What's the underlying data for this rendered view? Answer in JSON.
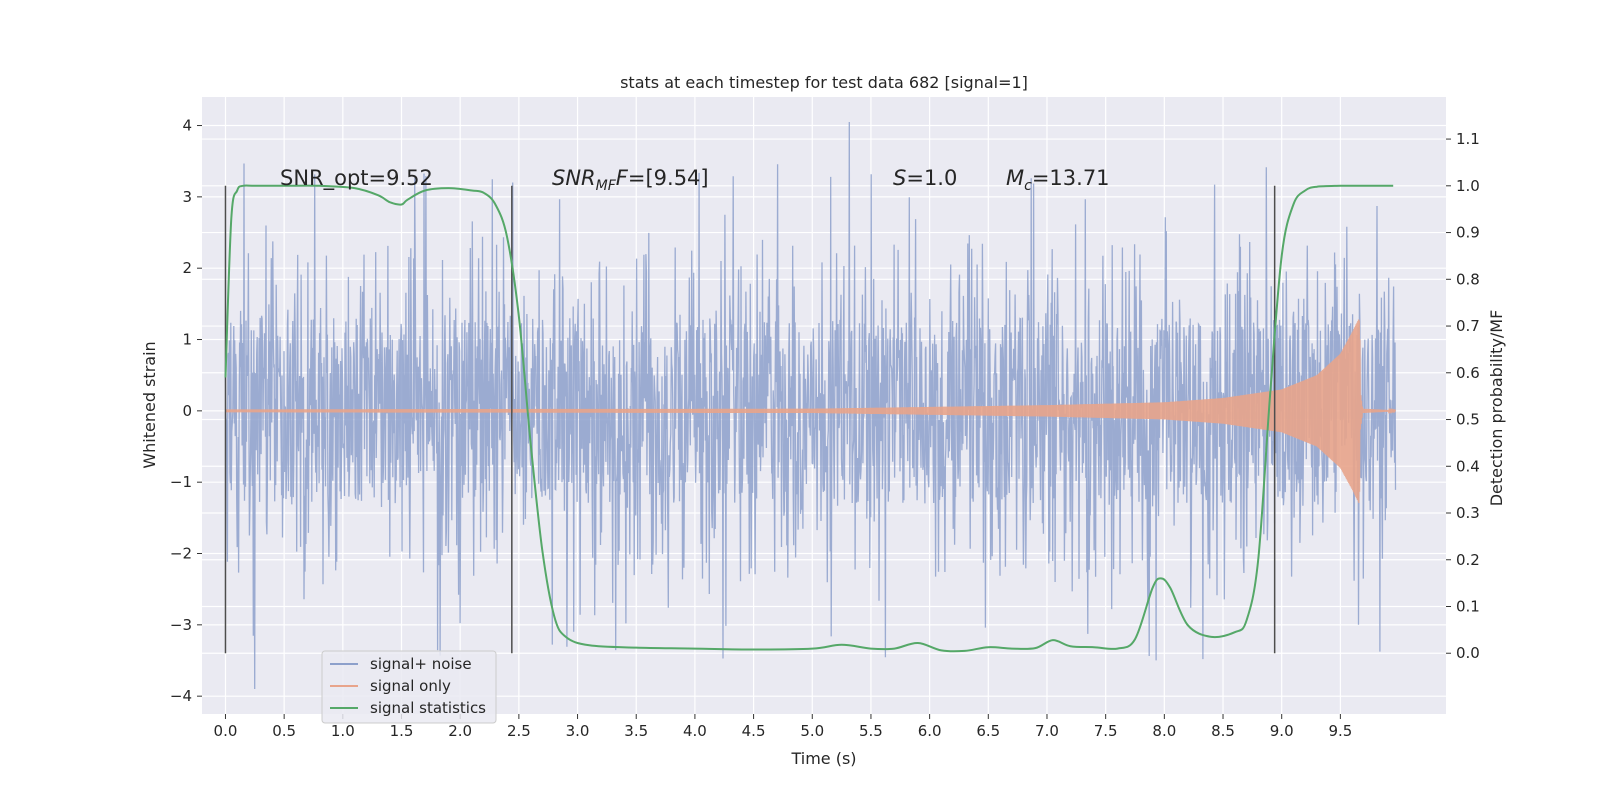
{
  "chart_data": {
    "type": "line",
    "title": "stats at each timestep for test data 682 [signal=1]",
    "xlabel": "Time (s)",
    "ylabel": "Whitened strain",
    "y2label": "Detection probability/MF",
    "xlim": [
      -0.2,
      10.4
    ],
    "ylim": [
      -4.25,
      4.4
    ],
    "y2lim": [
      -0.13,
      1.19
    ],
    "x_ticks": [
      "0.0",
      "0.5",
      "1.0",
      "1.5",
      "2.0",
      "2.5",
      "3.0",
      "3.5",
      "4.0",
      "4.5",
      "5.0",
      "5.5",
      "6.0",
      "6.5",
      "7.0",
      "7.5",
      "8.0",
      "8.5",
      "9.0",
      "9.5"
    ],
    "y_ticks": [
      "4",
      "3",
      "2",
      "1",
      "0",
      "−1",
      "−2",
      "−3",
      "−4"
    ],
    "y2_ticks": [
      "1.1",
      "1.0",
      "0.9",
      "0.8",
      "0.7",
      "0.6",
      "0.5",
      "0.4",
      "0.3",
      "0.2",
      "0.1",
      "0.0"
    ],
    "grid": true,
    "legend_position": "lower-left",
    "annotations": {
      "snr_opt": "SNR_opt=9.52",
      "snr_mf_prefix": "SNR",
      "snr_mf_sub": "MF",
      "snr_mf_value": "=[9.54]",
      "s_label": "S",
      "s_value": "=1.0",
      "mc_label": "M",
      "mc_sub": "c",
      "mc_value": "=13.71"
    },
    "vertical_markers_x": [
      0.0,
      2.44,
      8.94
    ],
    "series": [
      {
        "name": "signal+ noise",
        "color": "#8da0cb",
        "description_values": "whitened noise, |y| mostly < 1.3 with spikes up to about 4.05 near t=5.3 and down to about -3.9 near t=0.25",
        "x_range": [
          0.0,
          9.97
        ],
        "peak_max": 4.05,
        "peak_min": -3.9
      },
      {
        "name": "signal only",
        "color": "#e8a48b",
        "x_range": [
          0.0,
          9.97
        ],
        "envelope": [
          [
            0.0,
            0.02
          ],
          [
            5.0,
            0.03
          ],
          [
            7.0,
            0.08
          ],
          [
            8.0,
            0.12
          ],
          [
            8.5,
            0.18
          ],
          [
            9.0,
            0.3
          ],
          [
            9.3,
            0.5
          ],
          [
            9.5,
            0.8
          ],
          [
            9.6,
            1.1
          ],
          [
            9.66,
            1.3
          ],
          [
            9.69,
            0.1
          ],
          [
            9.97,
            0.02
          ]
        ],
        "merger_time": 9.67
      },
      {
        "name": "signal statistics",
        "color": "#55a868",
        "x": [
          0.0,
          0.05,
          0.1,
          0.15,
          0.25,
          0.5,
          0.8,
          1.1,
          1.3,
          1.4,
          1.5,
          1.55,
          1.7,
          1.9,
          2.1,
          2.2,
          2.3,
          2.4,
          2.5,
          2.6,
          2.7,
          2.8,
          2.9,
          3.1,
          3.5,
          4.0,
          4.5,
          5.0,
          5.25,
          5.5,
          5.7,
          5.9,
          6.1,
          6.3,
          6.5,
          6.7,
          6.9,
          7.05,
          7.2,
          7.4,
          7.6,
          7.75,
          7.9,
          7.97,
          8.05,
          8.2,
          8.4,
          8.6,
          8.7,
          8.8,
          8.9,
          9.0,
          9.1,
          9.2,
          9.3,
          9.5,
          9.7,
          9.95
        ],
        "y": [
          0.59,
          0.93,
          0.99,
          1.0,
          1.0,
          1.0,
          1.0,
          0.995,
          0.98,
          0.965,
          0.96,
          0.97,
          0.99,
          0.995,
          0.99,
          0.985,
          0.96,
          0.89,
          0.72,
          0.45,
          0.22,
          0.08,
          0.035,
          0.017,
          0.012,
          0.01,
          0.008,
          0.01,
          0.018,
          0.01,
          0.01,
          0.022,
          0.006,
          0.005,
          0.013,
          0.01,
          0.011,
          0.028,
          0.015,
          0.013,
          0.01,
          0.03,
          0.14,
          0.16,
          0.14,
          0.06,
          0.035,
          0.045,
          0.07,
          0.2,
          0.55,
          0.85,
          0.96,
          0.99,
          0.998,
          1.0,
          1.0,
          1.0
        ]
      }
    ]
  }
}
